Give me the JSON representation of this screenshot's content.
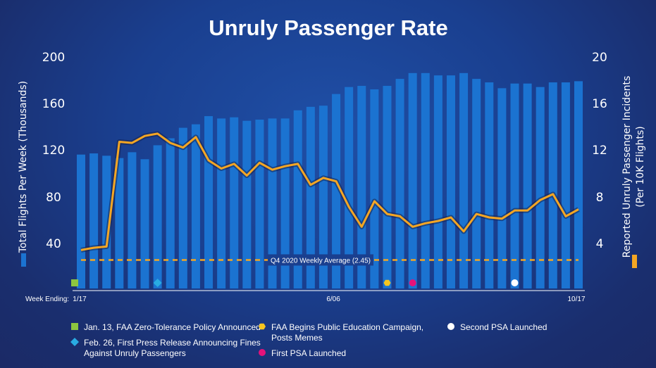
{
  "chart_data": {
    "type": "bar+line",
    "title": "Unruly Passenger Rate",
    "y_left": {
      "label": "Total Flights Per Week (Thousands)",
      "ticks": [
        "40",
        "80",
        "120",
        "160",
        "200"
      ],
      "range": [
        0,
        200
      ]
    },
    "y_right": {
      "label_line1": "Reported Unruly Passenger Incidents",
      "label_line2": "(Per 10K Flights)",
      "ticks": [
        "4",
        "8",
        "12",
        "16",
        "20"
      ],
      "range": [
        0,
        20
      ]
    },
    "x": {
      "prefix": "Week Ending:",
      "tick_labels": [
        {
          "index": 0,
          "text": "1/17"
        },
        {
          "index": 20,
          "text": "6/06"
        },
        {
          "index": 39,
          "text": "10/17"
        }
      ]
    },
    "series": [
      {
        "name": "Total Flights Per Week (Thousands)",
        "color": "#1b73d1",
        "values": [
          115,
          116,
          114,
          112,
          117,
          111,
          123,
          129,
          138,
          141,
          148,
          146,
          147,
          144,
          145,
          146,
          146,
          153,
          156,
          157,
          167,
          173,
          174,
          171,
          174,
          180,
          185,
          185,
          183,
          183,
          185,
          180,
          177,
          172,
          176,
          176,
          173,
          177,
          177,
          178
        ]
      },
      {
        "name": "Reported Unruly Passenger Incidents (Per 10K Flights)",
        "color": "#f5a623",
        "values": [
          3.3,
          3.5,
          3.6,
          12.6,
          12.5,
          13.1,
          13.3,
          12.5,
          12.1,
          13.0,
          11.0,
          10.3,
          10.7,
          9.7,
          10.8,
          10.2,
          10.5,
          10.7,
          8.9,
          9.5,
          9.2,
          7.0,
          5.3,
          7.5,
          6.4,
          6.2,
          5.3,
          5.6,
          5.8,
          6.1,
          4.9,
          6.4,
          6.1,
          6.0,
          6.7,
          6.7,
          7.6,
          8.1,
          6.2,
          6.8
        ]
      }
    ],
    "reference_line": {
      "value": 2.45,
      "label": "Q4 2020 Weekly Average (2.45)",
      "color": "#f5a623"
    },
    "event_markers": [
      {
        "index": 0,
        "shape": "square",
        "color": "#8dc63f"
      },
      {
        "index": 6,
        "shape": "diamond",
        "color": "#29abe2"
      },
      {
        "index": 24,
        "shape": "hexagon",
        "color": "#f7c51e"
      },
      {
        "index": 26,
        "shape": "circle",
        "color": "#e4127a"
      },
      {
        "index": 34,
        "shape": "circle",
        "color": "#ffffff"
      }
    ],
    "legend": [
      {
        "shape": "square",
        "color": "#8dc63f",
        "lines": [
          "Jan. 13, FAA Zero-Tolerance Policy Announced"
        ]
      },
      {
        "shape": "diamond",
        "color": "#29abe2",
        "lines": [
          "Feb. 26, First Press Release Announcing Fines",
          "Against Unruly Passengers"
        ]
      },
      {
        "shape": "hexagon",
        "color": "#f7c51e",
        "lines": [
          "FAA Begins Public Education Campaign,",
          "Posts Memes"
        ]
      },
      {
        "shape": "circle",
        "color": "#e4127a",
        "lines": [
          "First PSA Launched"
        ]
      },
      {
        "shape": "circle",
        "color": "#ffffff",
        "lines": [
          "Second PSA Launched"
        ]
      }
    ]
  }
}
